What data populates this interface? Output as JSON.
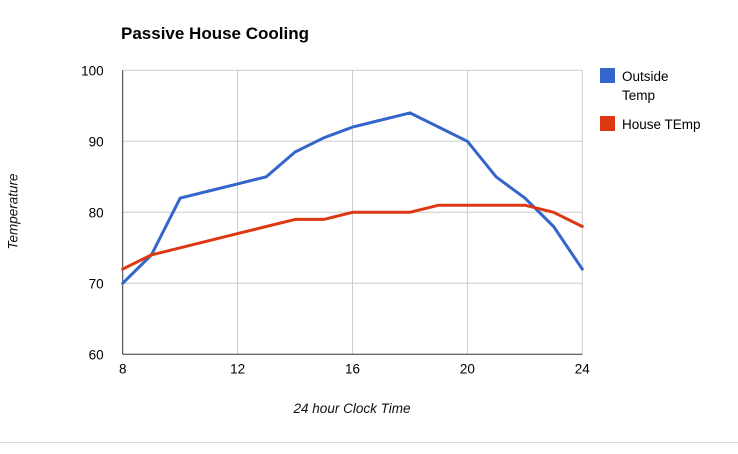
{
  "chart": {
    "title": "Passive House Cooling"
  },
  "chart_data": {
    "type": "line",
    "title": "Passive House Cooling",
    "xlabel": "24 hour Clock Time",
    "ylabel": "Temperature",
    "x": [
      8,
      9,
      10,
      11,
      12,
      13,
      14,
      15,
      16,
      17,
      18,
      19,
      20,
      21,
      22,
      23,
      24
    ],
    "series": [
      {
        "name": "Outside Temp",
        "color": "#3366CC",
        "values": [
          70,
          74,
          82,
          83,
          84,
          85,
          88.5,
          90.5,
          92,
          93,
          94,
          92,
          90,
          85,
          82,
          78,
          72
        ]
      },
      {
        "name": "House TEmp",
        "color": "#DC3912",
        "values": [
          72,
          74,
          75,
          76,
          77,
          78,
          79,
          79,
          80,
          80,
          80,
          81,
          81,
          81,
          81,
          80,
          78
        ]
      }
    ],
    "xlim": [
      8,
      24
    ],
    "ylim": [
      60,
      100
    ],
    "x_ticks": [
      8,
      12,
      16,
      20,
      24
    ],
    "y_ticks": [
      60,
      70,
      80,
      90,
      100
    ],
    "grid": true,
    "legend_position": "right",
    "colors": {
      "gridline": "#cccccc",
      "axis": "#333333",
      "tick_label": "#000000",
      "title": "#000000"
    }
  }
}
